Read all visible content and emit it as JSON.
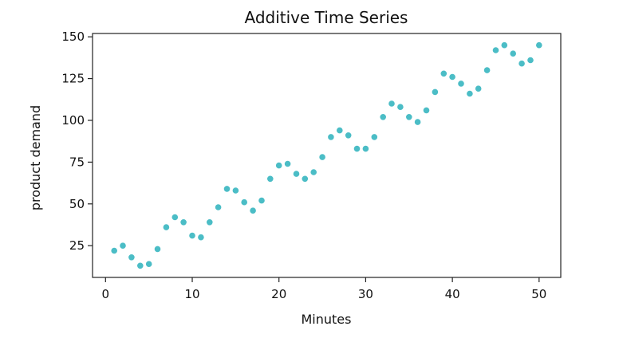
{
  "chart_data": {
    "type": "scatter",
    "title": "Additive Time Series",
    "xlabel": "Minutes",
    "ylabel": "product demand",
    "xlim": [
      -1.5,
      52.5
    ],
    "ylim": [
      6,
      152
    ],
    "xticks": [
      0,
      10,
      20,
      30,
      40,
      50
    ],
    "yticks": [
      25,
      50,
      75,
      100,
      125,
      150
    ],
    "grid": false,
    "legend": "none",
    "marker_color": "#4bbdc6",
    "x": [
      1,
      2,
      3,
      4,
      5,
      6,
      7,
      8,
      9,
      10,
      11,
      12,
      13,
      14,
      15,
      16,
      17,
      18,
      19,
      20,
      21,
      22,
      23,
      24,
      25,
      26,
      27,
      28,
      29,
      30,
      31,
      32,
      33,
      34,
      35,
      36,
      37,
      38,
      39,
      40,
      41,
      42,
      43,
      44,
      45,
      46,
      47,
      48,
      49,
      50
    ],
    "y": [
      22,
      25,
      18,
      13,
      14,
      23,
      36,
      42,
      39,
      31,
      30,
      39,
      48,
      59,
      58,
      51,
      46,
      52,
      65,
      73,
      74,
      68,
      65,
      69,
      78,
      90,
      94,
      91,
      83,
      83,
      90,
      102,
      110,
      108,
      102,
      99,
      106,
      117,
      128,
      126,
      122,
      116,
      119,
      130,
      142,
      145,
      140,
      134,
      136,
      145
    ]
  }
}
